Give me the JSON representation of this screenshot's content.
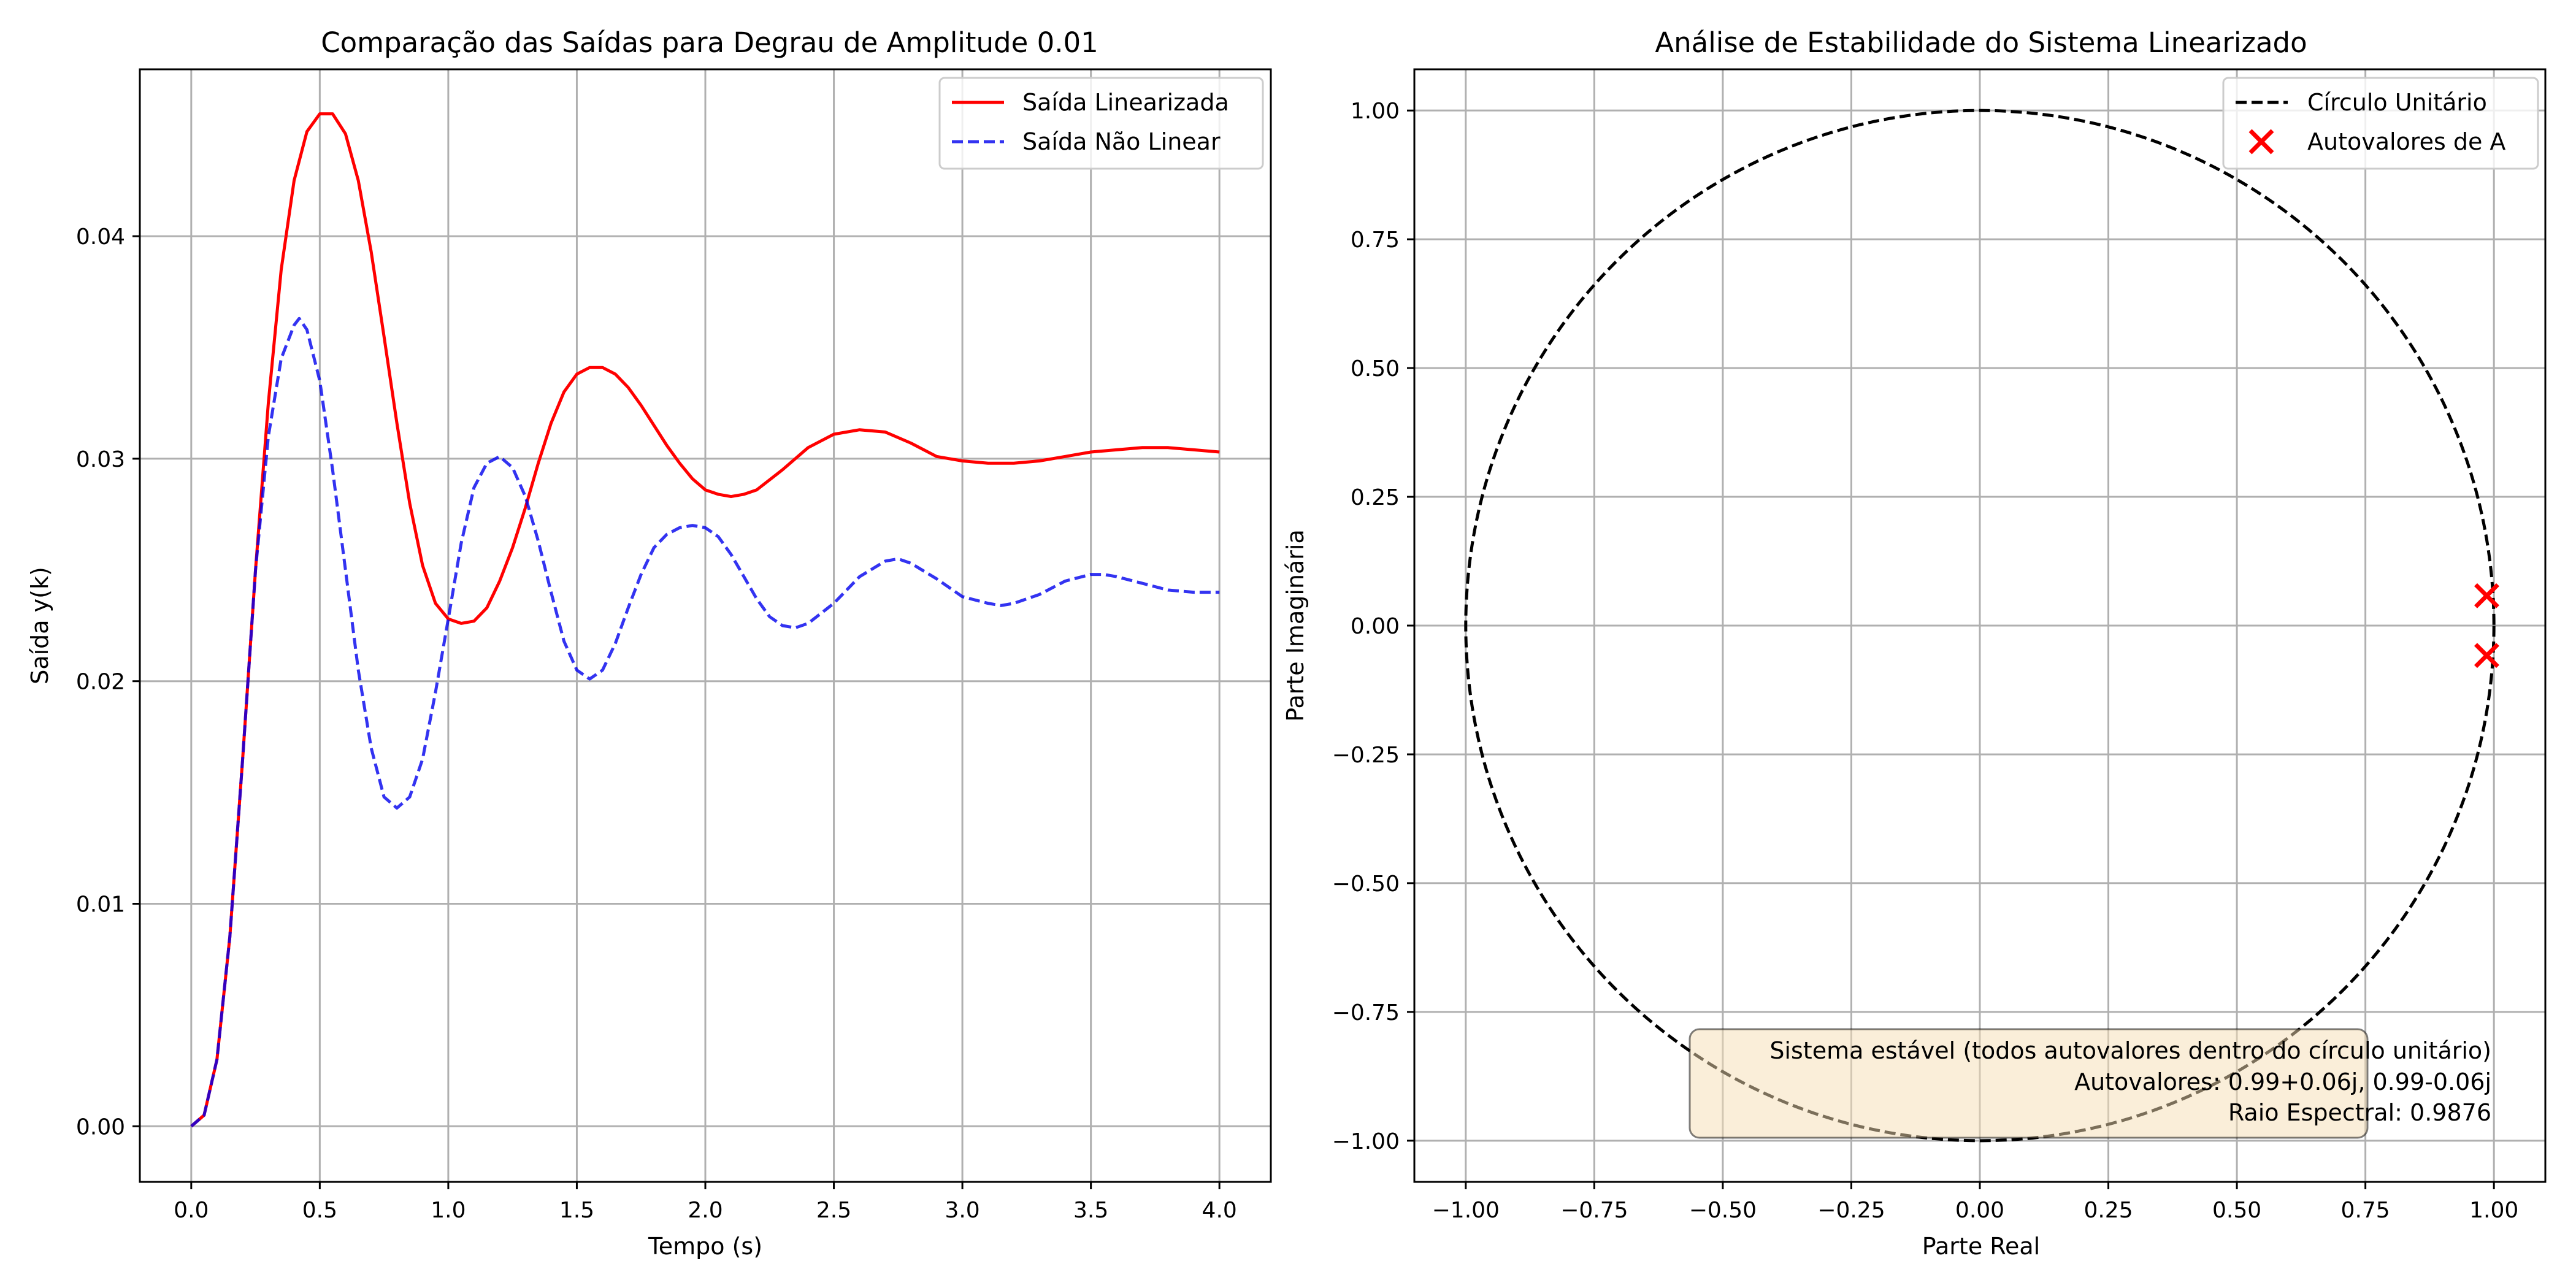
{
  "chart_data": [
    {
      "type": "line",
      "title": "Comparação das Saídas para Degrau de Amplitude 0.01",
      "xlabel": "Tempo (s)",
      "ylabel": "Saída y(k)",
      "xlim": [
        -0.2,
        4.2
      ],
      "ylim": [
        -0.0025,
        0.0475
      ],
      "xticks": [
        0.0,
        0.5,
        1.0,
        1.5,
        2.0,
        2.5,
        3.0,
        3.5,
        4.0
      ],
      "xtick_labels": [
        "0.0",
        "0.5",
        "1.0",
        "1.5",
        "2.0",
        "2.5",
        "3.0",
        "3.5",
        "4.0"
      ],
      "yticks": [
        0.0,
        0.01,
        0.02,
        0.03,
        0.04
      ],
      "ytick_labels": [
        "0.00",
        "0.01",
        "0.02",
        "0.03",
        "0.04"
      ],
      "grid": true,
      "legend_position": "upper right",
      "series": [
        {
          "name": "Saída Linearizada",
          "color": "#ff0000",
          "style": "solid",
          "points": [
            [
              0.0,
              0.0
            ],
            [
              0.05,
              0.0005
            ],
            [
              0.1,
              0.003
            ],
            [
              0.15,
              0.0085
            ],
            [
              0.2,
              0.0165
            ],
            [
              0.25,
              0.025
            ],
            [
              0.3,
              0.0325
            ],
            [
              0.35,
              0.0385
            ],
            [
              0.4,
              0.0425
            ],
            [
              0.45,
              0.0447
            ],
            [
              0.5,
              0.0455
            ],
            [
              0.55,
              0.0455
            ],
            [
              0.6,
              0.0446
            ],
            [
              0.65,
              0.0425
            ],
            [
              0.7,
              0.0393
            ],
            [
              0.75,
              0.0355
            ],
            [
              0.8,
              0.0316
            ],
            [
              0.85,
              0.028
            ],
            [
              0.9,
              0.0252
            ],
            [
              0.95,
              0.0235
            ],
            [
              1.0,
              0.0228
            ],
            [
              1.05,
              0.0226
            ],
            [
              1.1,
              0.0227
            ],
            [
              1.15,
              0.0233
            ],
            [
              1.2,
              0.0245
            ],
            [
              1.25,
              0.026
            ],
            [
              1.3,
              0.0278
            ],
            [
              1.35,
              0.0298
            ],
            [
              1.4,
              0.0316
            ],
            [
              1.45,
              0.033
            ],
            [
              1.5,
              0.0338
            ],
            [
              1.55,
              0.0341
            ],
            [
              1.6,
              0.0341
            ],
            [
              1.65,
              0.0338
            ],
            [
              1.7,
              0.0332
            ],
            [
              1.75,
              0.0324
            ],
            [
              1.8,
              0.0315
            ],
            [
              1.85,
              0.0306
            ],
            [
              1.9,
              0.0298
            ],
            [
              1.95,
              0.0291
            ],
            [
              2.0,
              0.0286
            ],
            [
              2.05,
              0.0284
            ],
            [
              2.1,
              0.0283
            ],
            [
              2.15,
              0.0284
            ],
            [
              2.2,
              0.0286
            ],
            [
              2.3,
              0.0295
            ],
            [
              2.4,
              0.0305
            ],
            [
              2.5,
              0.0311
            ],
            [
              2.6,
              0.0313
            ],
            [
              2.7,
              0.0312
            ],
            [
              2.8,
              0.0307
            ],
            [
              2.9,
              0.0301
            ],
            [
              3.0,
              0.0299
            ],
            [
              3.1,
              0.0298
            ],
            [
              3.2,
              0.0298
            ],
            [
              3.3,
              0.0299
            ],
            [
              3.4,
              0.0301
            ],
            [
              3.5,
              0.0303
            ],
            [
              3.6,
              0.0304
            ],
            [
              3.7,
              0.0305
            ],
            [
              3.8,
              0.0305
            ],
            [
              3.9,
              0.0304
            ],
            [
              4.0,
              0.0303
            ]
          ]
        },
        {
          "name": "Saída Não Linear",
          "color": "#0000ee",
          "style": "dashed",
          "points": [
            [
              0.0,
              0.0
            ],
            [
              0.05,
              0.0005
            ],
            [
              0.1,
              0.003
            ],
            [
              0.15,
              0.0085
            ],
            [
              0.2,
              0.0165
            ],
            [
              0.25,
              0.025
            ],
            [
              0.3,
              0.031
            ],
            [
              0.35,
              0.0345
            ],
            [
              0.4,
              0.036
            ],
            [
              0.42,
              0.0363
            ],
            [
              0.45,
              0.0358
            ],
            [
              0.5,
              0.0335
            ],
            [
              0.55,
              0.0295
            ],
            [
              0.6,
              0.025
            ],
            [
              0.65,
              0.0205
            ],
            [
              0.7,
              0.017
            ],
            [
              0.75,
              0.0148
            ],
            [
              0.8,
              0.0143
            ],
            [
              0.85,
              0.0148
            ],
            [
              0.9,
              0.0165
            ],
            [
              0.95,
              0.0195
            ],
            [
              1.0,
              0.0228
            ],
            [
              1.05,
              0.0262
            ],
            [
              1.1,
              0.0287
            ],
            [
              1.15,
              0.0298
            ],
            [
              1.2,
              0.0301
            ],
            [
              1.25,
              0.0296
            ],
            [
              1.3,
              0.0283
            ],
            [
              1.35,
              0.0263
            ],
            [
              1.4,
              0.024
            ],
            [
              1.45,
              0.0218
            ],
            [
              1.5,
              0.0205
            ],
            [
              1.55,
              0.0201
            ],
            [
              1.6,
              0.0205
            ],
            [
              1.65,
              0.0217
            ],
            [
              1.7,
              0.0233
            ],
            [
              1.75,
              0.0248
            ],
            [
              1.8,
              0.026
            ],
            [
              1.85,
              0.0266
            ],
            [
              1.9,
              0.0269
            ],
            [
              1.95,
              0.027
            ],
            [
              2.0,
              0.0269
            ],
            [
              2.05,
              0.0265
            ],
            [
              2.1,
              0.0257
            ],
            [
              2.15,
              0.0247
            ],
            [
              2.2,
              0.0237
            ],
            [
              2.25,
              0.0229
            ],
            [
              2.3,
              0.0225
            ],
            [
              2.35,
              0.0224
            ],
            [
              2.4,
              0.0226
            ],
            [
              2.5,
              0.0235
            ],
            [
              2.6,
              0.0247
            ],
            [
              2.7,
              0.0254
            ],
            [
              2.75,
              0.0255
            ],
            [
              2.8,
              0.0253
            ],
            [
              2.9,
              0.0246
            ],
            [
              3.0,
              0.0238
            ],
            [
              3.1,
              0.0235
            ],
            [
              3.15,
              0.0234
            ],
            [
              3.2,
              0.0235
            ],
            [
              3.3,
              0.0239
            ],
            [
              3.4,
              0.0245
            ],
            [
              3.5,
              0.0248
            ],
            [
              3.55,
              0.0248
            ],
            [
              3.6,
              0.0247
            ],
            [
              3.7,
              0.0244
            ],
            [
              3.8,
              0.0241
            ],
            [
              3.9,
              0.024
            ],
            [
              4.0,
              0.024
            ]
          ]
        }
      ]
    },
    {
      "type": "scatter",
      "title": "Análise de Estabilidade do Sistema Linearizado",
      "xlabel": "Parte Real",
      "ylabel": "Parte Imaginária",
      "xlim": [
        -1.1,
        1.1
      ],
      "ylim": [
        -1.08,
        1.08
      ],
      "xticks": [
        -1.0,
        -0.75,
        -0.5,
        -0.25,
        0.0,
        0.25,
        0.5,
        0.75,
        1.0
      ],
      "xtick_labels": [
        "−1.00",
        "−0.75",
        "−0.50",
        "−0.25",
        "0.00",
        "0.25",
        "0.50",
        "0.75",
        "1.00"
      ],
      "yticks": [
        -1.0,
        -0.75,
        -0.5,
        -0.25,
        0.0,
        0.25,
        0.5,
        0.75,
        1.0
      ],
      "ytick_labels": [
        "−1.00",
        "−0.75",
        "−0.50",
        "−0.25",
        "0.00",
        "0.25",
        "0.50",
        "0.75",
        "1.00"
      ],
      "grid": true,
      "legend_position": "upper right",
      "unit_circle": {
        "name": "Círculo Unitário",
        "radius": 1.0,
        "color": "#000000",
        "style": "dashed"
      },
      "eigenvalues": {
        "name": "Autovalores de A",
        "color": "#ff0000",
        "marker": "x",
        "points": [
          [
            0.986,
            0.058
          ],
          [
            0.986,
            -0.058
          ]
        ]
      },
      "annotation": [
        "Sistema estável (todos autovalores dentro do círculo unitário)",
        "Autovalores: 0.99+0.06j, 0.99-0.06j",
        "Raio Espectral: 0.9876"
      ],
      "annotation_box_color": "#f5deb3"
    }
  ]
}
